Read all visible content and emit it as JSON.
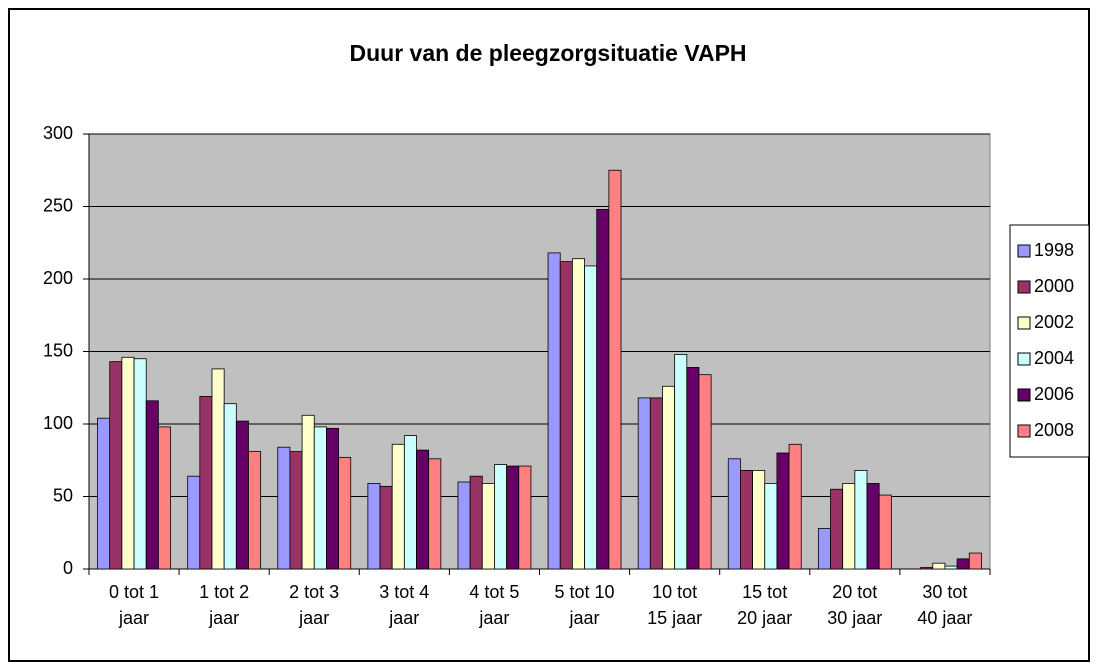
{
  "chart_data": {
    "type": "bar",
    "title": "Duur van de pleegzorgsituatie VAPH",
    "categories": [
      "0 tot 1\njaar",
      "1 tot 2\njaar",
      "2 tot 3\njaar",
      "3 tot 4\njaar",
      "4 tot 5\njaar",
      "5 tot 10\njaar",
      "10 tot\n15 jaar",
      "15 tot\n20 jaar",
      "20 tot\n30 jaar",
      "30 tot\n40 jaar"
    ],
    "series": [
      {
        "name": "1998",
        "color": "#9999ff",
        "values": [
          104,
          64,
          84,
          59,
          60,
          218,
          118,
          76,
          28,
          0
        ]
      },
      {
        "name": "2000",
        "color": "#993366",
        "values": [
          143,
          119,
          81,
          57,
          64,
          212,
          118,
          68,
          55,
          1
        ]
      },
      {
        "name": "2002",
        "color": "#ffffcc",
        "values": [
          146,
          138,
          106,
          86,
          59,
          214,
          126,
          68,
          59,
          4
        ]
      },
      {
        "name": "2004",
        "color": "#ccffff",
        "values": [
          145,
          114,
          98,
          92,
          72,
          209,
          148,
          59,
          68,
          2
        ]
      },
      {
        "name": "2006",
        "color": "#660066",
        "values": [
          116,
          102,
          97,
          82,
          71,
          248,
          139,
          80,
          59,
          7
        ]
      },
      {
        "name": "2008",
        "color": "#ff8080",
        "values": [
          98,
          81,
          77,
          76,
          71,
          275,
          134,
          86,
          51,
          11
        ]
      }
    ],
    "ylim": [
      0,
      300
    ],
    "yticks": [
      0,
      50,
      100,
      150,
      200,
      250,
      300
    ],
    "grid": true,
    "legend": "right"
  }
}
